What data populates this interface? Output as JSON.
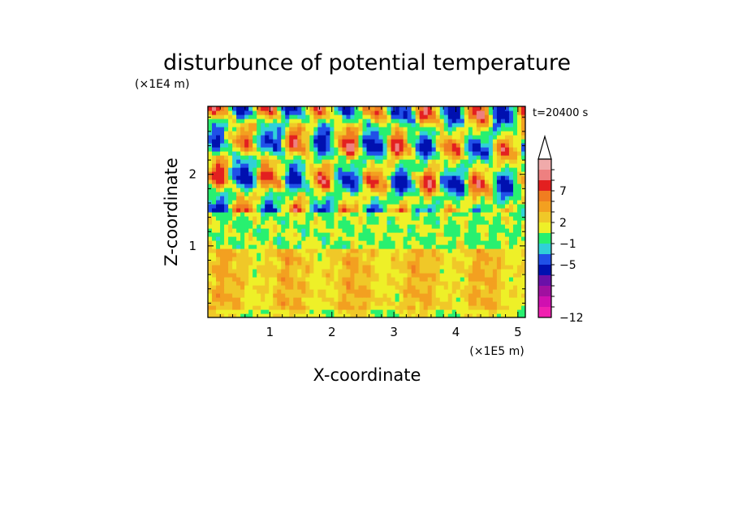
{
  "chart_data": {
    "type": "heatmap",
    "title": "disturbunce of potential temperature",
    "xlabel": "X-coordinate",
    "ylabel": "Z-coordinate",
    "x_unit": "(×1E5 m)",
    "y_unit": "(×1E4 m)",
    "time_label": "t=20400 s",
    "xlim": [
      0,
      5.12
    ],
    "ylim": [
      0,
      2.95
    ],
    "x_ticks": [
      1,
      2,
      3,
      4,
      5
    ],
    "y_ticks": [
      1,
      2
    ],
    "colorbar": {
      "tick_labels": [
        "7",
        "2",
        "−1",
        "−5",
        "−12"
      ],
      "colors": [
        "#f0aaaa",
        "#ee8080",
        "#e32020",
        "#f07d20",
        "#f3a020",
        "#f0c828",
        "#eef028",
        "#28f070",
        "#30d0d8",
        "#2050e8",
        "#0010b0",
        "#6a10a8",
        "#a010a0",
        "#d010b0",
        "#f020b0"
      ],
      "extend": "max"
    },
    "bands": [
      {
        "z_range": [
          0,
          0.95
        ],
        "dominant": "yellow-orange, ~1 to 3"
      },
      {
        "z_range": [
          0.95,
          1.5
        ],
        "dominant": "green/yellow, ~-1 to 1"
      },
      {
        "z_range": [
          1.5,
          2.95
        ],
        "dominant": "mixed, ~-5 to 5"
      }
    ]
  }
}
